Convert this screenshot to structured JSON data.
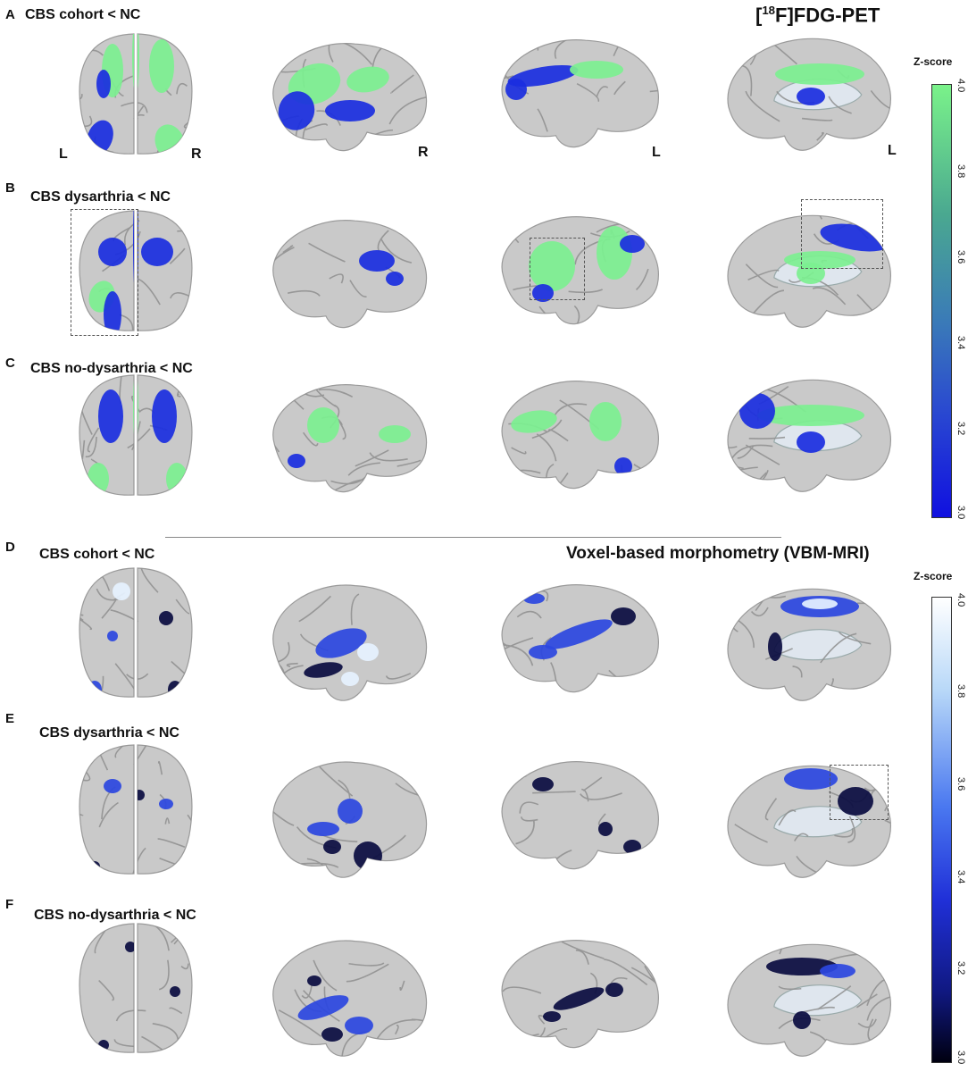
{
  "pet": {
    "title_pre": "[",
    "title_sup": "18",
    "title_post": "F]FDG-PET",
    "colorbar": {
      "label": "Z-score",
      "ticks": [
        "4.0",
        "3.8",
        "3.6",
        "3.4",
        "3.2",
        "3.0"
      ],
      "color_top": "#7af28a",
      "color_mid": "#3a7ab8",
      "color_bottom": "#1010e0"
    },
    "panels": [
      {
        "letter": "A",
        "title": "CBS cohort < NC",
        "labels": [
          "L",
          "R",
          "R",
          "L",
          "L"
        ]
      },
      {
        "letter": "B",
        "title": "CBS dysarthria < NC"
      },
      {
        "letter": "C",
        "title": "CBS no-dysarthria < NC"
      }
    ]
  },
  "vbm": {
    "title": "Voxel-based morphometry (VBM-MRI)",
    "colorbar": {
      "label": "Z-score",
      "ticks": [
        "4.0",
        "3.8",
        "3.6",
        "3.4",
        "3.2",
        "3.0"
      ],
      "color_top": "#ffffff",
      "color_mid": "#2a3cd8",
      "color_bottom": "#000010"
    },
    "panels": [
      {
        "letter": "D",
        "title": "CBS cohort < NC"
      },
      {
        "letter": "E",
        "title": "CBS dysarthria < NC"
      },
      {
        "letter": "F",
        "title": "CBS no-dysarthria < NC"
      }
    ]
  },
  "colors": {
    "brain": "#c9c9c9",
    "brain_edge": "#9a9a9a",
    "pet_hot": "#7cf090",
    "pet_cold": "#1a2ee0",
    "vbm_hot": "#e6f2ff",
    "vbm_mid": "#2b46e0",
    "vbm_cold": "#0a0c40",
    "box": "#555555"
  }
}
